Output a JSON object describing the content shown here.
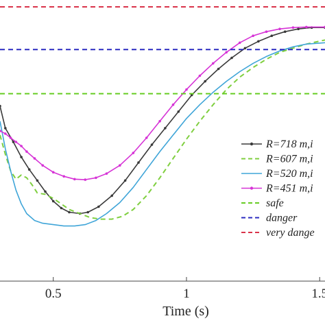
{
  "chart_data": {
    "type": "line",
    "xlabel": "Time (s)",
    "xlim": [
      0.3,
      1.52
    ],
    "ylim": [
      0,
      1
    ],
    "grid": false,
    "legend_position": "right",
    "xticks": [
      {
        "value": 0.5,
        "label": "0.5"
      },
      {
        "value": 1.0,
        "label": "1"
      },
      {
        "value": 1.5,
        "label": "1.5"
      }
    ],
    "series": [
      {
        "name": "R=718 m,i",
        "color": "#3a3a3a",
        "style": "solid-dot",
        "points": [
          [
            0.3,
            0.635
          ],
          [
            0.32,
            0.555
          ],
          [
            0.35,
            0.505
          ],
          [
            0.38,
            0.45
          ],
          [
            0.41,
            0.405
          ],
          [
            0.44,
            0.365
          ],
          [
            0.47,
            0.325
          ],
          [
            0.5,
            0.29
          ],
          [
            0.53,
            0.265
          ],
          [
            0.56,
            0.25
          ],
          [
            0.6,
            0.245
          ],
          [
            0.63,
            0.25
          ],
          [
            0.67,
            0.27
          ],
          [
            0.72,
            0.31
          ],
          [
            0.77,
            0.365
          ],
          [
            0.82,
            0.43
          ],
          [
            0.87,
            0.495
          ],
          [
            0.92,
            0.555
          ],
          [
            0.97,
            0.615
          ],
          [
            1.02,
            0.675
          ],
          [
            1.07,
            0.725
          ],
          [
            1.12,
            0.77
          ],
          [
            1.17,
            0.81
          ],
          [
            1.22,
            0.845
          ],
          [
            1.27,
            0.87
          ],
          [
            1.32,
            0.89
          ],
          [
            1.37,
            0.905
          ],
          [
            1.42,
            0.915
          ],
          [
            1.47,
            0.92
          ],
          [
            1.52,
            0.92
          ]
        ]
      },
      {
        "name": "R=607 m,i",
        "color": "#7fcf3f",
        "style": "dashed",
        "points": [
          [
            0.3,
            0.53
          ],
          [
            0.32,
            0.46
          ],
          [
            0.34,
            0.4
          ],
          [
            0.36,
            0.37
          ],
          [
            0.38,
            0.385
          ],
          [
            0.4,
            0.375
          ],
          [
            0.42,
            0.35
          ],
          [
            0.44,
            0.32
          ],
          [
            0.47,
            0.315
          ],
          [
            0.5,
            0.3
          ],
          [
            0.53,
            0.28
          ],
          [
            0.56,
            0.26
          ],
          [
            0.6,
            0.245
          ],
          [
            0.64,
            0.23
          ],
          [
            0.68,
            0.225
          ],
          [
            0.72,
            0.225
          ],
          [
            0.76,
            0.235
          ],
          [
            0.8,
            0.26
          ],
          [
            0.85,
            0.31
          ],
          [
            0.9,
            0.375
          ],
          [
            0.95,
            0.445
          ],
          [
            1.0,
            0.515
          ],
          [
            1.05,
            0.58
          ],
          [
            1.1,
            0.64
          ],
          [
            1.15,
            0.695
          ],
          [
            1.2,
            0.74
          ],
          [
            1.25,
            0.775
          ],
          [
            1.3,
            0.805
          ],
          [
            1.35,
            0.83
          ],
          [
            1.4,
            0.845
          ],
          [
            1.45,
            0.86
          ],
          [
            1.52,
            0.875
          ]
        ]
      },
      {
        "name": "R=520 m,i",
        "color": "#3fa5d8",
        "style": "solid",
        "points": [
          [
            0.3,
            0.58
          ],
          [
            0.32,
            0.48
          ],
          [
            0.34,
            0.4
          ],
          [
            0.36,
            0.33
          ],
          [
            0.38,
            0.28
          ],
          [
            0.4,
            0.245
          ],
          [
            0.43,
            0.22
          ],
          [
            0.46,
            0.21
          ],
          [
            0.5,
            0.205
          ],
          [
            0.54,
            0.2
          ],
          [
            0.58,
            0.2
          ],
          [
            0.62,
            0.205
          ],
          [
            0.66,
            0.22
          ],
          [
            0.7,
            0.245
          ],
          [
            0.75,
            0.285
          ],
          [
            0.8,
            0.34
          ],
          [
            0.85,
            0.405
          ],
          [
            0.9,
            0.47
          ],
          [
            0.95,
            0.53
          ],
          [
            1.0,
            0.59
          ],
          [
            1.05,
            0.64
          ],
          [
            1.1,
            0.685
          ],
          [
            1.15,
            0.725
          ],
          [
            1.2,
            0.76
          ],
          [
            1.25,
            0.79
          ],
          [
            1.3,
            0.815
          ],
          [
            1.35,
            0.835
          ],
          [
            1.4,
            0.85
          ],
          [
            1.45,
            0.86
          ],
          [
            1.52,
            0.865
          ]
        ]
      },
      {
        "name": "R=451 m,i",
        "color": "#d633d6",
        "style": "solid-dot",
        "points": [
          [
            0.3,
            0.545
          ],
          [
            0.32,
            0.535
          ],
          [
            0.34,
            0.52
          ],
          [
            0.36,
            0.505
          ],
          [
            0.38,
            0.49
          ],
          [
            0.4,
            0.47
          ],
          [
            0.43,
            0.445
          ],
          [
            0.46,
            0.42
          ],
          [
            0.5,
            0.395
          ],
          [
            0.54,
            0.38
          ],
          [
            0.58,
            0.37
          ],
          [
            0.62,
            0.368
          ],
          [
            0.66,
            0.375
          ],
          [
            0.7,
            0.39
          ],
          [
            0.75,
            0.42
          ],
          [
            0.8,
            0.465
          ],
          [
            0.85,
            0.52
          ],
          [
            0.9,
            0.58
          ],
          [
            0.95,
            0.64
          ],
          [
            1.0,
            0.695
          ],
          [
            1.05,
            0.745
          ],
          [
            1.1,
            0.79
          ],
          [
            1.15,
            0.83
          ],
          [
            1.2,
            0.865
          ],
          [
            1.25,
            0.89
          ],
          [
            1.3,
            0.905
          ],
          [
            1.35,
            0.915
          ],
          [
            1.4,
            0.92
          ],
          [
            1.45,
            0.922
          ],
          [
            1.52,
            0.922
          ]
        ]
      },
      {
        "name": "safe",
        "color": "#66cc22",
        "style": "dashed",
        "points": [
          [
            0.3,
            0.68
          ],
          [
            1.52,
            0.68
          ]
        ]
      },
      {
        "name": "danger",
        "color": "#2b2bc0",
        "style": "dashed",
        "points": [
          [
            0.3,
            0.84
          ],
          [
            1.52,
            0.84
          ]
        ]
      },
      {
        "name": "very dange",
        "color": "#d9334a",
        "style": "dashed",
        "points": [
          [
            0.3,
            0.995
          ],
          [
            1.52,
            0.995
          ]
        ]
      }
    ]
  }
}
